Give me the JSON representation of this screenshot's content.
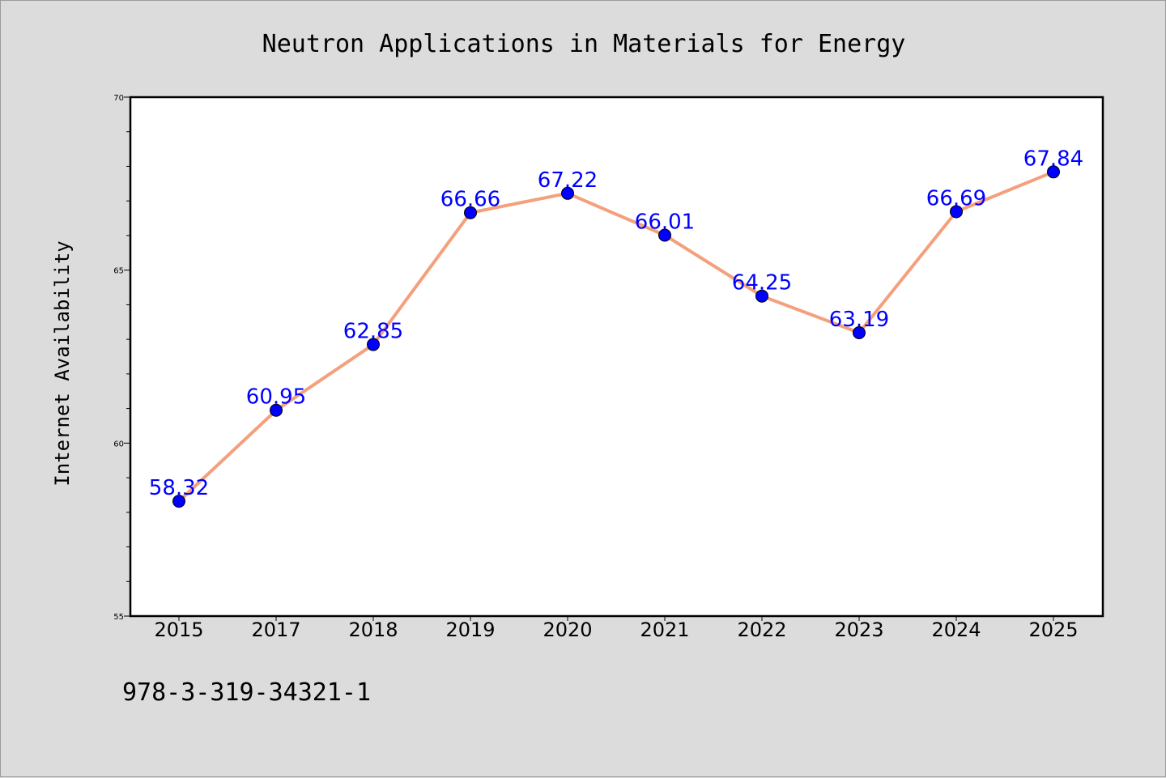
{
  "chart_data": {
    "type": "line",
    "title": "Neutron Applications in Materials for Energy",
    "xlabel": "",
    "ylabel": "Internet Availability",
    "categories": [
      "2015",
      "2017",
      "2018",
      "2019",
      "2020",
      "2021",
      "2022",
      "2023",
      "2024",
      "2025"
    ],
    "series": [
      {
        "values": [
          58.32,
          60.95,
          62.85,
          66.66,
          67.22,
          66.01,
          64.25,
          63.19,
          66.69,
          67.84
        ],
        "labels": [
          "58.32",
          "60.95",
          "62.85",
          "66.66",
          "67.22",
          "66.01",
          "64.25",
          "63.19",
          "66.69",
          "67.84"
        ]
      }
    ],
    "ylim": [
      55,
      70
    ],
    "yticks": [
      "55",
      "60",
      "65",
      "70"
    ],
    "grid": false,
    "legend": "none",
    "colors": {
      "line": "#f4a07c",
      "marker": "#0000ff",
      "data_label": "#0000ff",
      "background": "#dcdcdc",
      "plot_background": "#ffffff"
    }
  },
  "footer": {
    "code": "978-3-319-34321-1"
  }
}
